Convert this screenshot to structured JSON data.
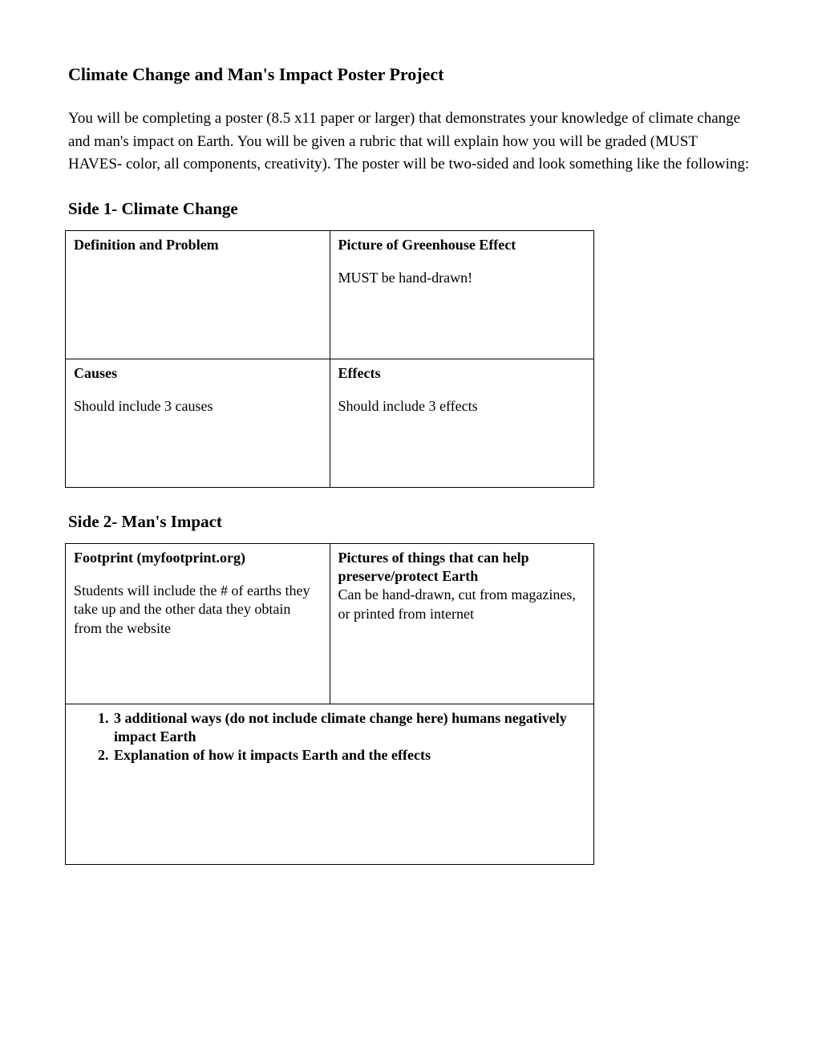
{
  "title": "Climate Change and Man's Impact Poster Project",
  "intro": "You will be completing a poster (8.5 x11 paper or larger) that demonstrates your knowledge of climate change and man's impact on Earth.  You will be given a rubric that will explain how you will be graded (MUST HAVES- color, all components, creativity).  The poster will be two-sided and look something like the following:",
  "side1": {
    "title": "Side 1- Climate Change",
    "cells": [
      {
        "heading": "Definition and Problem",
        "body": ""
      },
      {
        "heading": "Picture of Greenhouse Effect",
        "body": "MUST be hand-drawn!"
      },
      {
        "heading": " Causes",
        "body": "Should include 3 causes"
      },
      {
        "heading": "Effects",
        "body": "Should include 3 effects"
      }
    ]
  },
  "side2": {
    "title": "Side 2- Man's Impact",
    "cells": [
      {
        "heading": "Footprint (myfootprint.org)",
        "body": "Students will include the # of earths they take up and the other data they obtain from the website"
      },
      {
        "heading": "Pictures of things that can help preserve/protect Earth",
        "body": "Can be hand-drawn, cut from magazines, or printed from internet"
      }
    ],
    "list": [
      "3 additional ways (do not include climate change here) humans negatively impact Earth",
      "Explanation  of how it impacts Earth and the effects"
    ]
  }
}
